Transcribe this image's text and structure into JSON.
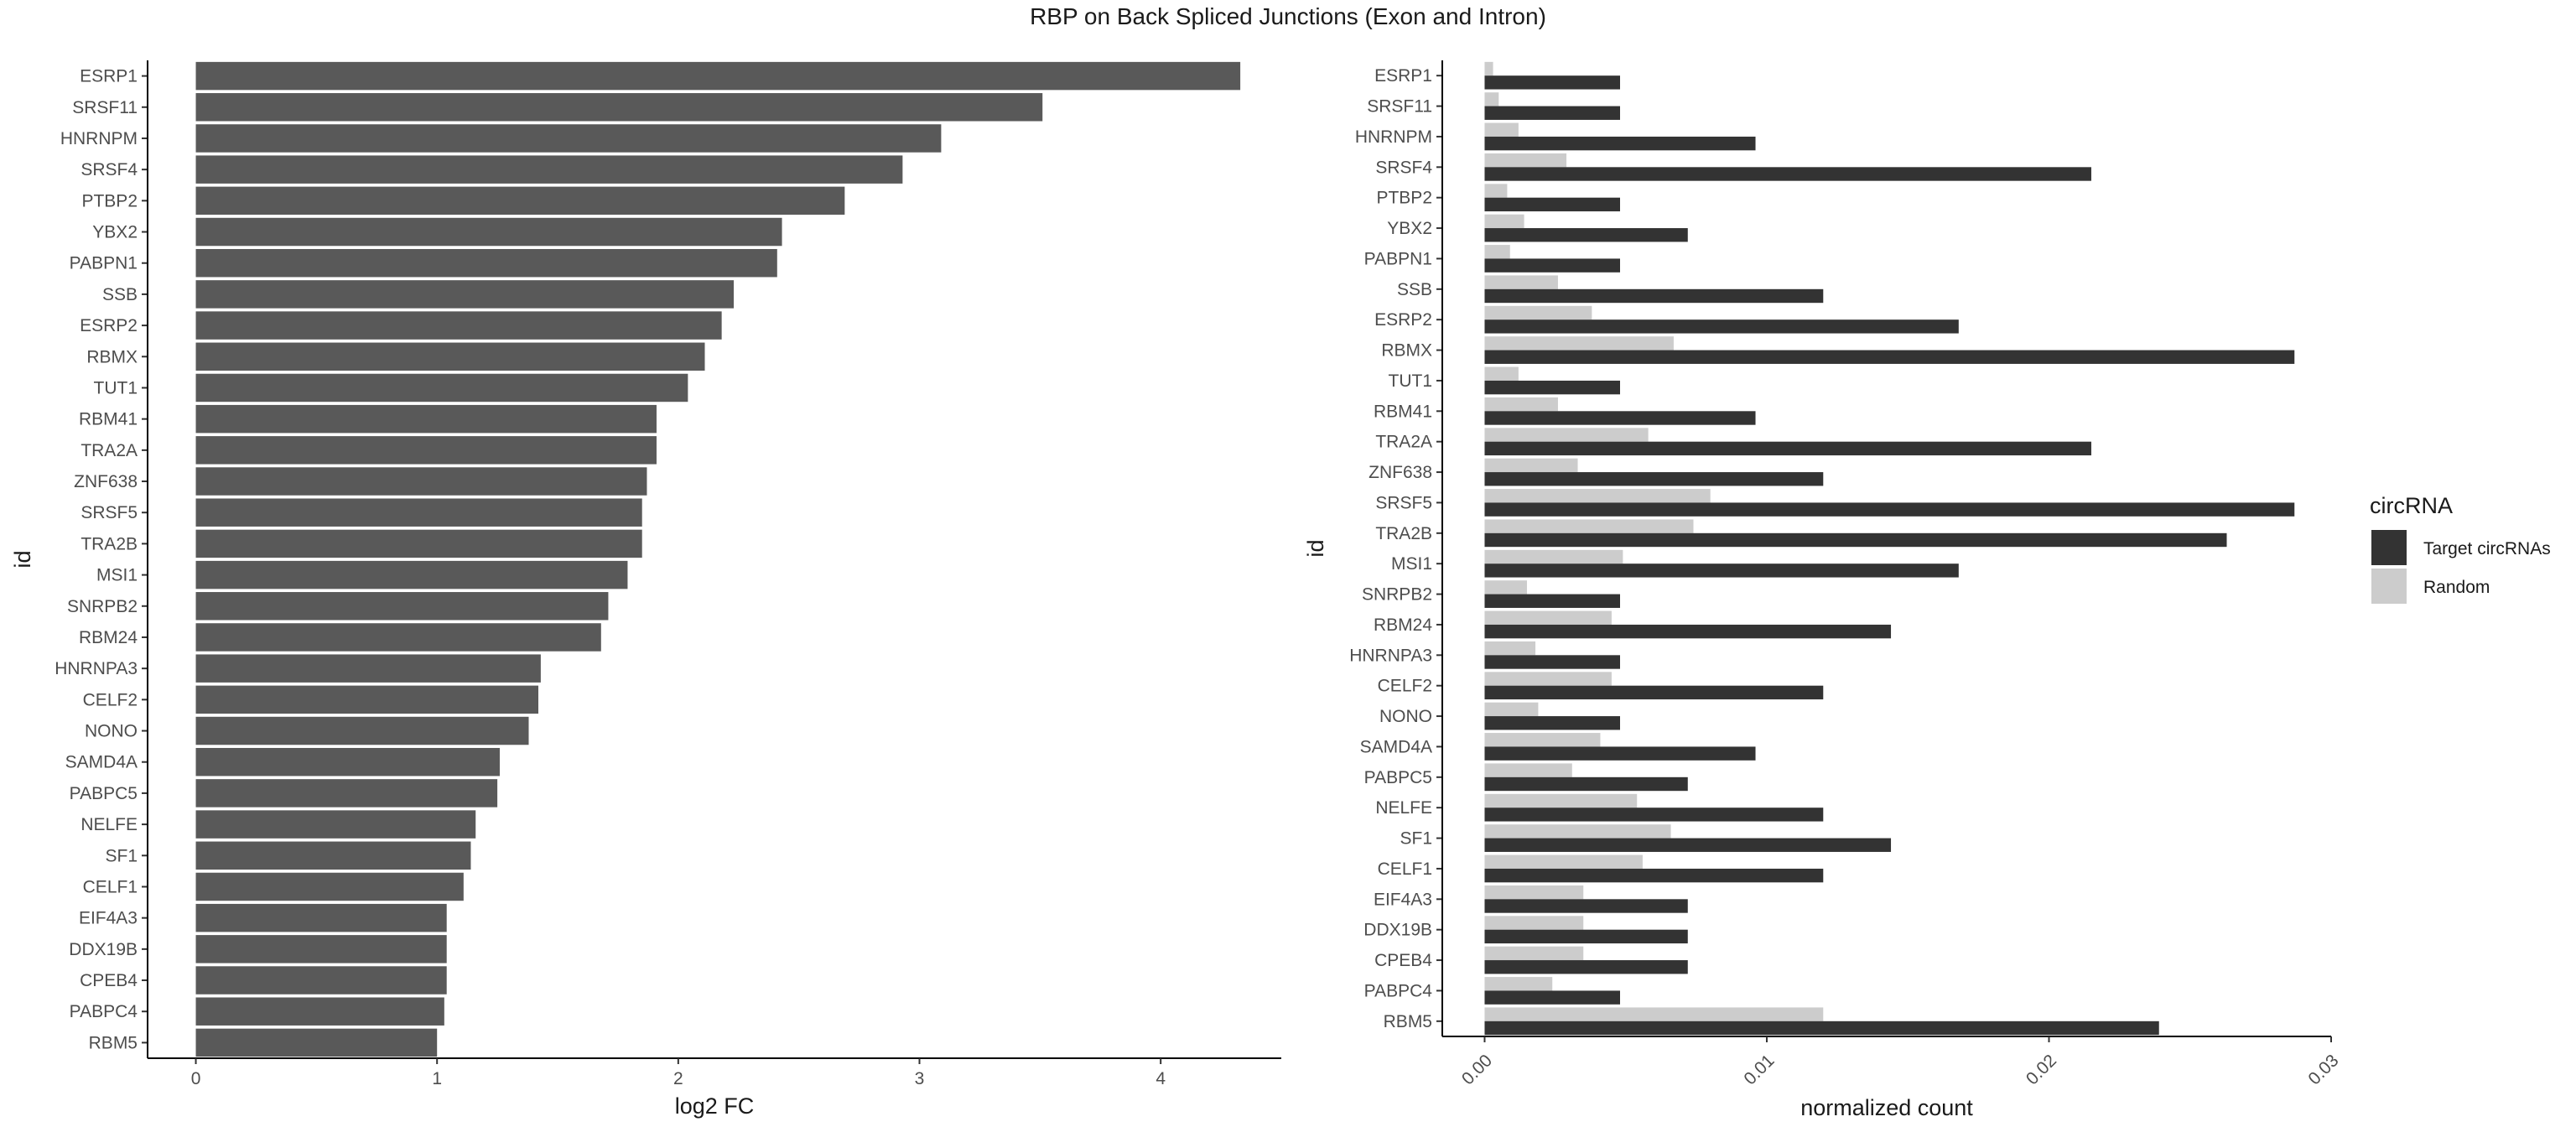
{
  "title": "RBP on Back Spliced Junctions (Exon and Intron)",
  "chart_data": [
    {
      "type": "bar",
      "orientation": "horizontal",
      "xlabel": "log2 FC",
      "ylabel": "id",
      "xlim": [
        -0.2,
        4.5
      ],
      "xticks": [
        0,
        1,
        2,
        3,
        4
      ],
      "grid": false,
      "bar_color": "#595959",
      "categories": [
        "ESRP1",
        "SRSF11",
        "HNRNPM",
        "SRSF4",
        "PTBP2",
        "YBX2",
        "PABPN1",
        "SSB",
        "ESRP2",
        "RBMX",
        "TUT1",
        "RBM41",
        "TRA2A",
        "ZNF638",
        "SRSF5",
        "TRA2B",
        "MSI1",
        "SNRPB2",
        "RBM24",
        "HNRNPA3",
        "CELF2",
        "NONO",
        "SAMD4A",
        "PABPC5",
        "NELFE",
        "SF1",
        "CELF1",
        "EIF4A3",
        "DDX19B",
        "CPEB4",
        "PABPC4",
        "RBM5"
      ],
      "values": [
        4.33,
        3.51,
        3.09,
        2.93,
        2.69,
        2.43,
        2.41,
        2.23,
        2.18,
        2.11,
        2.04,
        1.91,
        1.91,
        1.87,
        1.85,
        1.85,
        1.79,
        1.71,
        1.68,
        1.43,
        1.42,
        1.38,
        1.26,
        1.25,
        1.16,
        1.14,
        1.11,
        1.04,
        1.04,
        1.04,
        1.03,
        1.0
      ]
    },
    {
      "type": "bar",
      "orientation": "horizontal",
      "grouped": true,
      "xlabel": "normalized count",
      "ylabel": "id",
      "xlim": [
        -0.0015,
        0.03
      ],
      "xticks": [
        0.0,
        0.01,
        0.02,
        0.03
      ],
      "xtick_labels": [
        "0.00",
        "0.01",
        "0.02",
        "0.03"
      ],
      "grid": false,
      "categories": [
        "ESRP1",
        "SRSF11",
        "HNRNPM",
        "SRSF4",
        "PTBP2",
        "YBX2",
        "PABPN1",
        "SSB",
        "ESRP2",
        "RBMX",
        "TUT1",
        "RBM41",
        "TRA2A",
        "ZNF638",
        "SRSF5",
        "TRA2B",
        "MSI1",
        "SNRPB2",
        "RBM24",
        "HNRNPA3",
        "CELF2",
        "NONO",
        "SAMD4A",
        "PABPC5",
        "NELFE",
        "SF1",
        "CELF1",
        "EIF4A3",
        "DDX19B",
        "CPEB4",
        "PABPC4",
        "RBM5"
      ],
      "legend": {
        "title": "circRNA",
        "placement": "right"
      },
      "series": [
        {
          "name": "Target circRNAs",
          "color": "#333333",
          "values": [
            0.0048,
            0.0048,
            0.0096,
            0.0215,
            0.0048,
            0.0072,
            0.0048,
            0.012,
            0.0168,
            0.0287,
            0.0048,
            0.0096,
            0.0215,
            0.012,
            0.0287,
            0.0263,
            0.0168,
            0.0048,
            0.0144,
            0.0048,
            0.012,
            0.0048,
            0.0096,
            0.0072,
            0.012,
            0.0144,
            0.012,
            0.0072,
            0.0072,
            0.0072,
            0.0048,
            0.0239
          ]
        },
        {
          "name": "Random",
          "color": "#cccccc",
          "values": [
            0.0003,
            0.0005,
            0.0012,
            0.0029,
            0.0008,
            0.0014,
            0.0009,
            0.0026,
            0.0038,
            0.0067,
            0.0012,
            0.0026,
            0.0058,
            0.0033,
            0.008,
            0.0074,
            0.0049,
            0.0015,
            0.0045,
            0.0018,
            0.0045,
            0.0019,
            0.0041,
            0.0031,
            0.0054,
            0.0066,
            0.0056,
            0.0035,
            0.0035,
            0.0035,
            0.0024,
            0.012
          ]
        }
      ]
    }
  ]
}
